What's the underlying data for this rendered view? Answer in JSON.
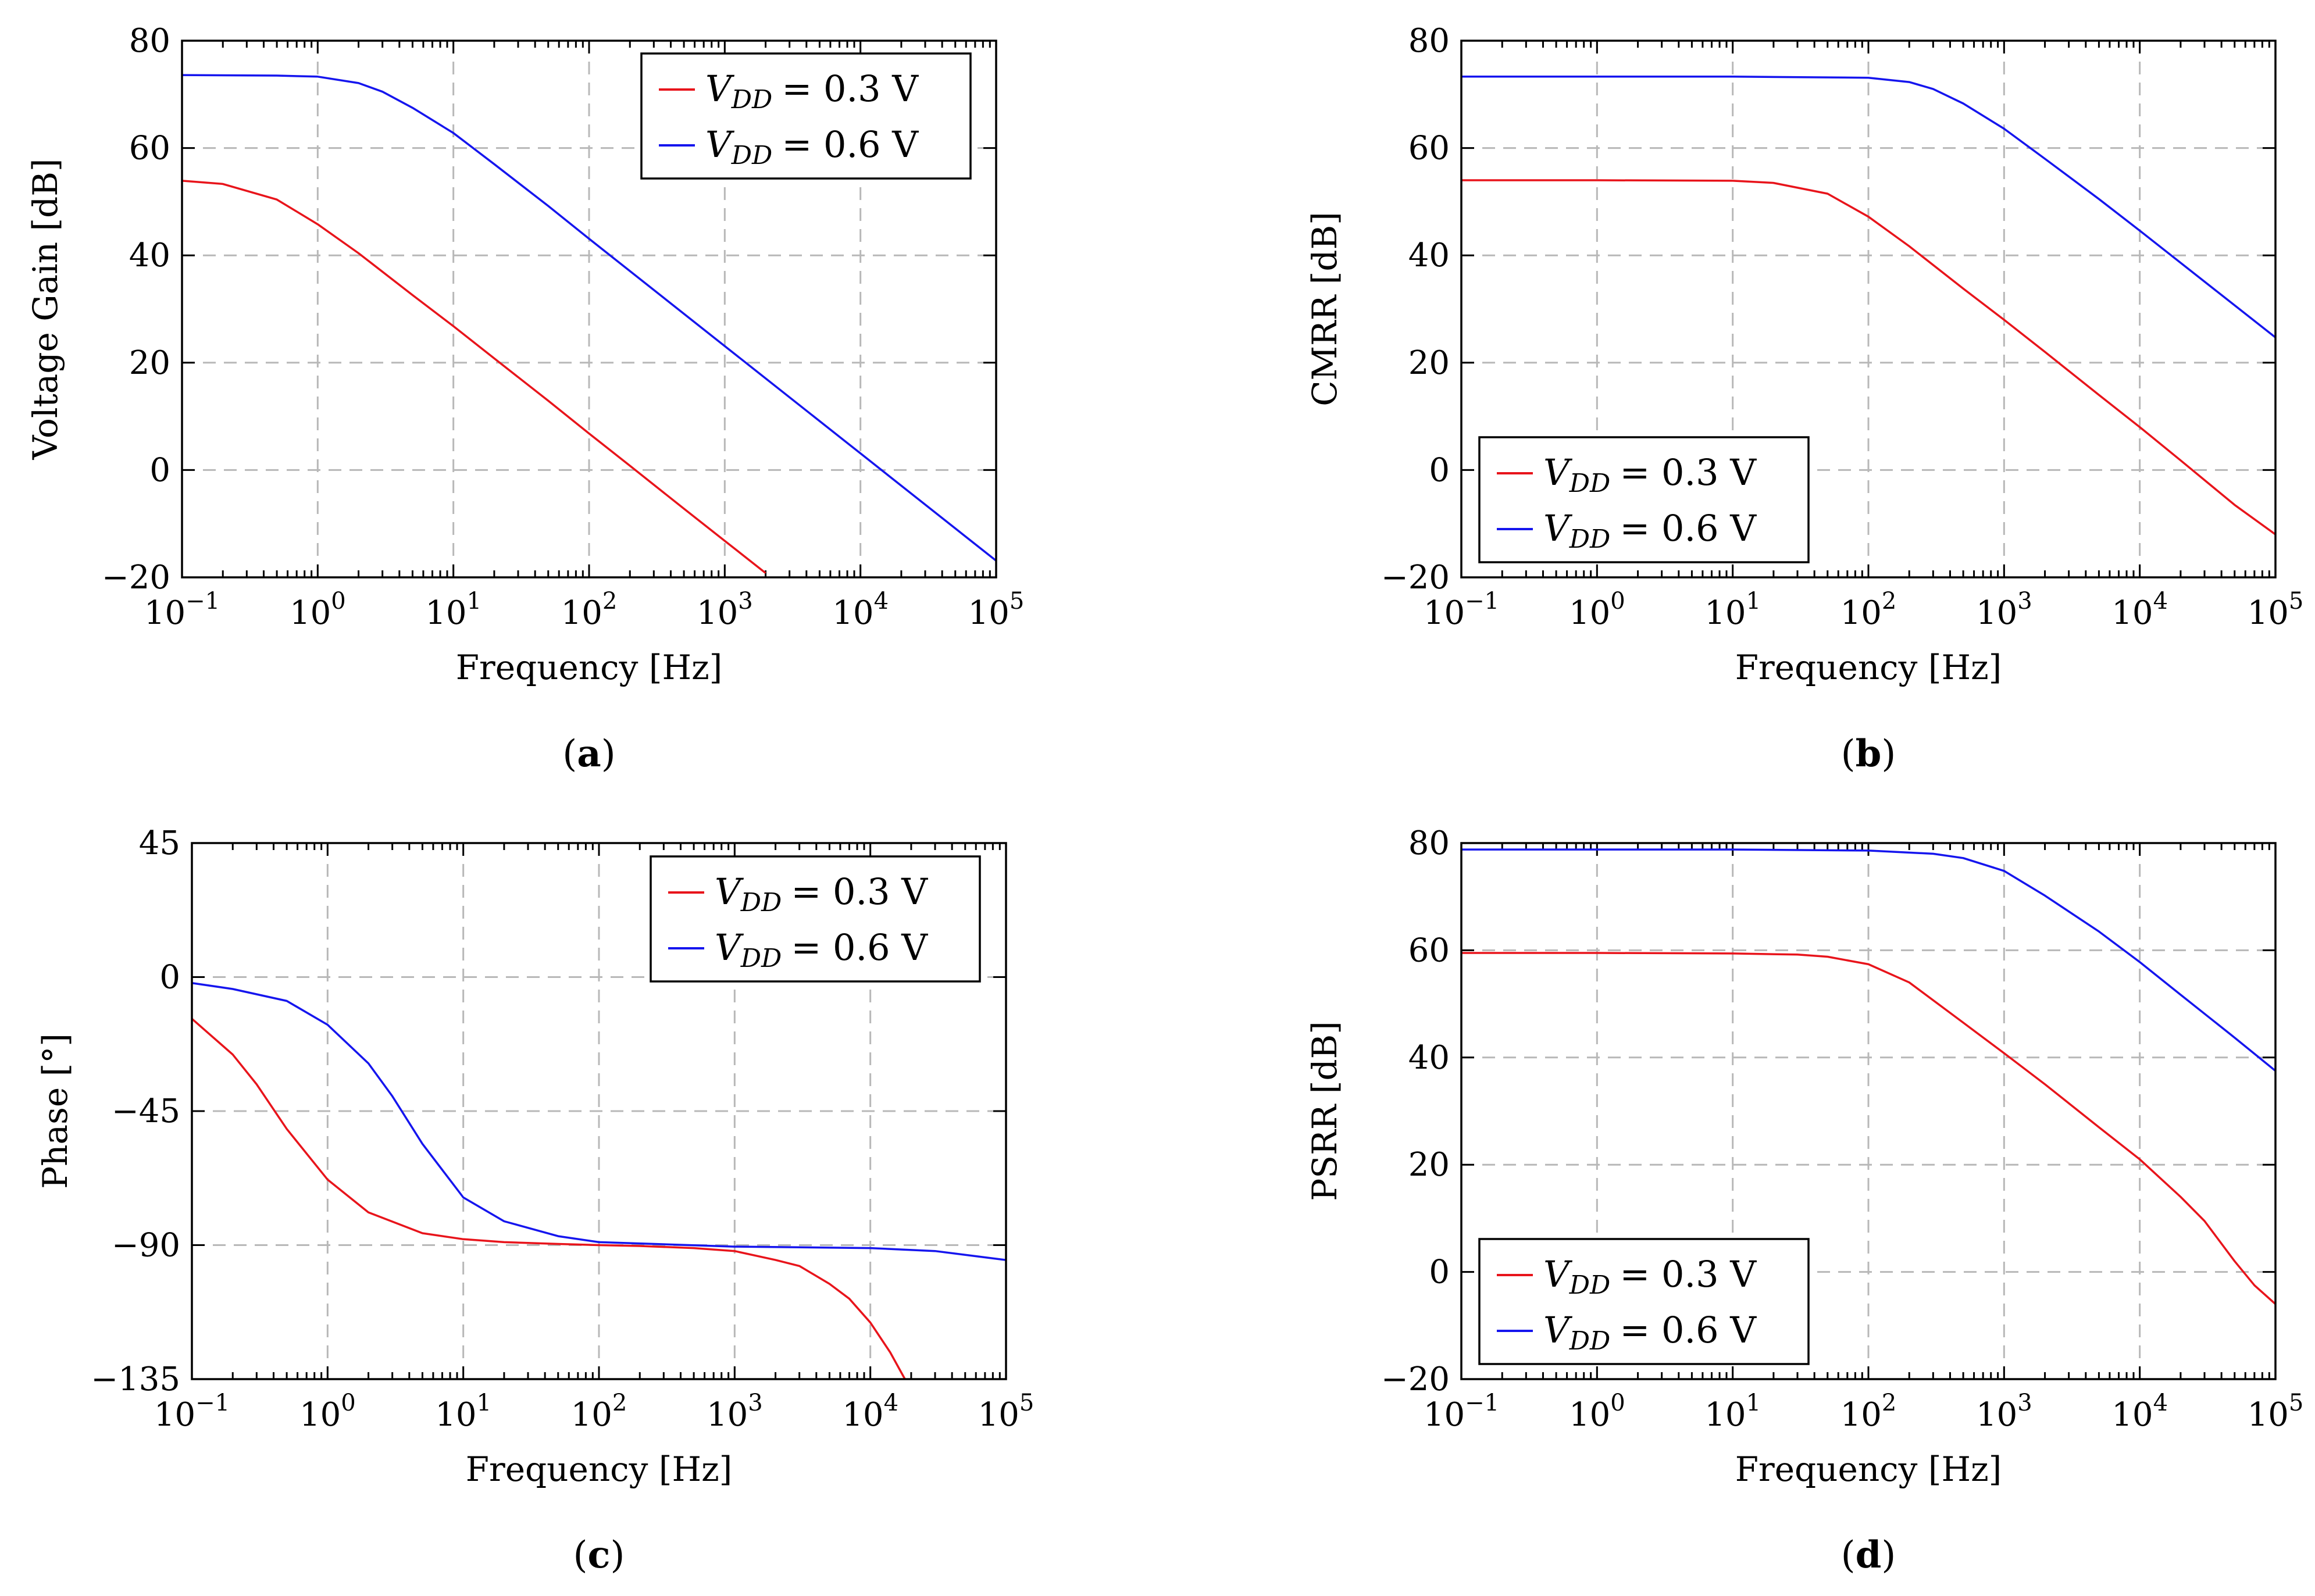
{
  "colors": {
    "red": "#e8141b",
    "blue": "#1515ee",
    "grid": "#b8b8b8"
  },
  "chart_data": [
    {
      "id": "a",
      "type": "line",
      "caption": "a",
      "xlabel": "Frequency [Hz]",
      "ylabel": "Voltage Gain [dB]",
      "xscale": "log",
      "xlim": [
        0.1,
        100000
      ],
      "ylim": [
        -20,
        80
      ],
      "yticks": [
        -20,
        0,
        20,
        40,
        60,
        80
      ],
      "ytick_labels": [
        "−20",
        "0",
        "20",
        "40",
        "60",
        "80"
      ],
      "xticks": [
        0.1,
        1,
        10,
        100,
        1000,
        10000,
        100000
      ],
      "xtick_base": "10",
      "xtick_exponents": [
        "−1",
        "0",
        "1",
        "2",
        "3",
        "4",
        "5"
      ],
      "grid": true,
      "legend_position": "top-right",
      "series": [
        {
          "name": "V_DD = 0.3 V",
          "legend_var": "V",
          "legend_sub": "DD",
          "legend_value": "= 0.3 V",
          "color": "#e8141b",
          "x": [
            0.1,
            0.2,
            0.5,
            1,
            2,
            5,
            10,
            20,
            50,
            100,
            200,
            500,
            1000,
            2000
          ],
          "y": [
            53.9,
            53.3,
            50.4,
            45.8,
            40.4,
            32.6,
            26.8,
            20.8,
            12.9,
            6.8,
            0.8,
            -7.2,
            -13.2,
            -19.2
          ]
        },
        {
          "name": "V_DD = 0.6 V",
          "legend_var": "V",
          "legend_sub": "DD",
          "legend_value": "= 0.6 V",
          "color": "#1515ee",
          "x": [
            0.1,
            0.5,
            1,
            2,
            3,
            5,
            10,
            20,
            50,
            100,
            1000,
            10000,
            100000
          ],
          "y": [
            73.6,
            73.5,
            73.3,
            72.1,
            70.5,
            67.5,
            62.8,
            57.0,
            49.2,
            43.1,
            23.1,
            3.1,
            -16.9
          ]
        }
      ]
    },
    {
      "id": "b",
      "type": "line",
      "caption": "b",
      "xlabel": "Frequency [Hz]",
      "ylabel": "CMRR [dB]",
      "xscale": "log",
      "xlim": [
        0.1,
        100000
      ],
      "ylim": [
        -20,
        80
      ],
      "yticks": [
        -20,
        0,
        20,
        40,
        60,
        80
      ],
      "ytick_labels": [
        "−20",
        "0",
        "20",
        "40",
        "60",
        "80"
      ],
      "xticks": [
        0.1,
        1,
        10,
        100,
        1000,
        10000,
        100000
      ],
      "xtick_base": "10",
      "xtick_exponents": [
        "−1",
        "0",
        "1",
        "2",
        "3",
        "4",
        "5"
      ],
      "grid": true,
      "legend_position": "bottom-left",
      "series": [
        {
          "name": "V_DD = 0.3 V",
          "legend_var": "V",
          "legend_sub": "DD",
          "legend_value": "= 0.3 V",
          "color": "#e8141b",
          "x": [
            0.1,
            1,
            10,
            20,
            50,
            100,
            200,
            500,
            1000,
            2000,
            5000,
            10000,
            20000,
            50000,
            100000
          ],
          "y": [
            54.0,
            54.0,
            53.9,
            53.5,
            51.5,
            47.2,
            41.7,
            33.8,
            28.0,
            22.0,
            14.0,
            8.0,
            1.8,
            -6.5,
            -12.0
          ]
        },
        {
          "name": "V_DD = 0.6 V",
          "legend_var": "V",
          "legend_sub": "DD",
          "legend_value": "= 0.6 V",
          "color": "#1515ee",
          "x": [
            0.1,
            1,
            10,
            100,
            200,
            300,
            500,
            1000,
            2000,
            5000,
            10000,
            100000
          ],
          "y": [
            73.3,
            73.3,
            73.3,
            73.1,
            72.3,
            71.0,
            68.3,
            63.6,
            58.0,
            50.5,
            44.6,
            24.7
          ]
        }
      ]
    },
    {
      "id": "c",
      "type": "line",
      "caption": "c",
      "xlabel": "Frequency [Hz]",
      "ylabel": "Phase [°]",
      "xscale": "log",
      "xlim": [
        0.1,
        100000
      ],
      "ylim": [
        -135,
        45
      ],
      "yticks": [
        -135,
        -90,
        -45,
        0,
        45
      ],
      "ytick_labels": [
        "−135",
        "−90",
        "−45",
        "0",
        "45"
      ],
      "xticks": [
        0.1,
        1,
        10,
        100,
        1000,
        10000,
        100000
      ],
      "xtick_base": "10",
      "xtick_exponents": [
        "−1",
        "0",
        "1",
        "2",
        "3",
        "4",
        "5"
      ],
      "grid": true,
      "legend_position": "top-right",
      "series": [
        {
          "name": "V_DD = 0.3 V",
          "legend_var": "V",
          "legend_sub": "DD",
          "legend_value": "= 0.3 V",
          "color": "#e8141b",
          "x": [
            0.1,
            0.2,
            0.3,
            0.5,
            1,
            2,
            5,
            10,
            20,
            50,
            100,
            200,
            500,
            1000,
            2000,
            3000,
            5000,
            7000,
            10000,
            14000,
            18000
          ],
          "y": [
            -14,
            -26,
            -36,
            -51,
            -68,
            -79,
            -86,
            -88,
            -89,
            -89.6,
            -90,
            -90.3,
            -91,
            -92,
            -95,
            -97,
            -103,
            -108,
            -116,
            -126,
            -135
          ]
        },
        {
          "name": "V_DD = 0.6 V",
          "legend_var": "V",
          "legend_sub": "DD",
          "legend_value": "= 0.6 V",
          "color": "#1515ee",
          "x": [
            0.1,
            0.2,
            0.5,
            1,
            2,
            3,
            5,
            10,
            20,
            50,
            100,
            1000,
            10000,
            30000,
            100000
          ],
          "y": [
            -2,
            -4,
            -8,
            -16,
            -29,
            -40,
            -56,
            -74,
            -82,
            -87,
            -89,
            -90.5,
            -91,
            -92,
            -95
          ]
        }
      ]
    },
    {
      "id": "d",
      "type": "line",
      "caption": "d",
      "xlabel": "Frequency [Hz]",
      "ylabel": "PSRR [dB]",
      "xscale": "log",
      "xlim": [
        0.1,
        100000
      ],
      "ylim": [
        -20,
        80
      ],
      "yticks": [
        -20,
        0,
        20,
        40,
        60,
        80
      ],
      "ytick_labels": [
        "−20",
        "0",
        "20",
        "40",
        "60",
        "80"
      ],
      "xticks": [
        0.1,
        1,
        10,
        100,
        1000,
        10000,
        100000
      ],
      "xtick_base": "10",
      "xtick_exponents": [
        "−1",
        "0",
        "1",
        "2",
        "3",
        "4",
        "5"
      ],
      "grid": true,
      "legend_position": "bottom-left",
      "series": [
        {
          "name": "V_DD = 0.3 V",
          "legend_var": "V",
          "legend_sub": "DD",
          "legend_value": "= 0.3 V",
          "color": "#e8141b",
          "x": [
            0.1,
            1,
            10,
            30,
            50,
            100,
            200,
            500,
            1000,
            2000,
            5000,
            10000,
            20000,
            30000,
            50000,
            70000,
            100000
          ],
          "y": [
            59.5,
            59.5,
            59.4,
            59.2,
            58.8,
            57.4,
            54.0,
            46.5,
            40.8,
            35.0,
            27.0,
            21.0,
            14.0,
            9.5,
            2.0,
            -2.5,
            -6.0
          ]
        },
        {
          "name": "V_DD = 0.6 V",
          "legend_var": "V",
          "legend_sub": "DD",
          "legend_value": "= 0.6 V",
          "color": "#1515ee",
          "x": [
            0.1,
            1,
            10,
            100,
            300,
            500,
            1000,
            2000,
            5000,
            10000,
            20000,
            50000,
            100000
          ],
          "y": [
            78.8,
            78.8,
            78.8,
            78.6,
            78.0,
            77.2,
            74.8,
            70.2,
            63.5,
            57.8,
            51.7,
            43.7,
            37.5
          ]
        }
      ]
    }
  ]
}
